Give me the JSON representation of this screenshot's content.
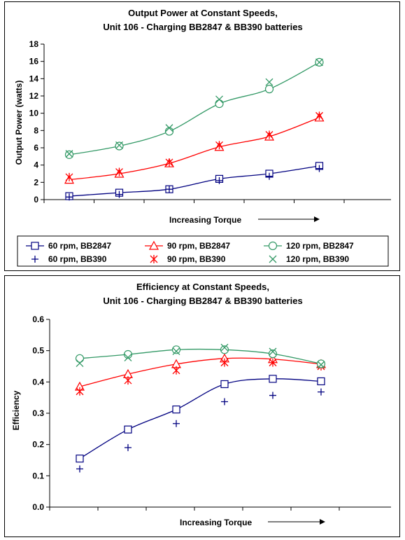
{
  "chart_data": [
    {
      "type": "line",
      "title_line1": "Output Power at Constant Speeds,",
      "title_line2": "Unit 106 - Charging BB2847 & BB390 batteries",
      "xlabel": "Increasing Torque",
      "ylabel": "Output Power (watts)",
      "ylim": [
        0,
        18
      ],
      "yticks": [
        0,
        2,
        4,
        6,
        8,
        10,
        12,
        14,
        16,
        18
      ],
      "grid": false,
      "legend_position": "bottom",
      "x": [
        1,
        2,
        3,
        4,
        5,
        6
      ],
      "series": [
        {
          "name": "60 rpm, BB2847",
          "color": "#000080",
          "marker": "square",
          "line": true,
          "values": [
            0.4,
            0.8,
            1.2,
            2.4,
            3.0,
            3.9
          ]
        },
        {
          "name": "60 rpm, BB390",
          "color": "#000080",
          "marker": "plus",
          "line": false,
          "values": [
            0.3,
            0.6,
            1.2,
            2.2,
            2.7,
            3.6
          ]
        },
        {
          "name": "90 rpm, BB2847",
          "color": "#ff0000",
          "marker": "triangle",
          "line": true,
          "values": [
            2.3,
            3.0,
            4.2,
            6.1,
            7.3,
            9.5
          ]
        },
        {
          "name": "90 rpm, BB390",
          "color": "#ff0000",
          "marker": "star",
          "line": false,
          "values": [
            2.6,
            3.2,
            4.3,
            6.3,
            7.5,
            9.7
          ]
        },
        {
          "name": "120 rpm, BB2847",
          "color": "#339966",
          "marker": "circle",
          "line": true,
          "values": [
            5.2,
            6.2,
            7.9,
            11.1,
            12.8,
            15.9
          ]
        },
        {
          "name": "120 rpm, BB390",
          "color": "#339966",
          "marker": "x",
          "line": false,
          "values": [
            5.3,
            6.3,
            8.3,
            11.6,
            13.6,
            15.9
          ]
        }
      ]
    },
    {
      "type": "line",
      "title_line1": "Efficiency at Constant Speeds,",
      "title_line2": "Unit 106 - Charging BB2847 & BB390 batteries",
      "xlabel": "Increasing Torque",
      "ylabel": "Efficiency",
      "ylim": [
        0,
        0.6
      ],
      "yticks": [
        "0.0",
        "0.1",
        "0.2",
        "0.3",
        "0.4",
        "0.5",
        "0.6"
      ],
      "grid": false,
      "x": [
        1,
        2,
        3,
        4,
        5,
        6
      ],
      "series": [
        {
          "color": "#000080",
          "marker": "square",
          "line": true,
          "values": [
            0.155,
            0.248,
            0.312,
            0.393,
            0.41,
            0.402
          ]
        },
        {
          "color": "#000080",
          "marker": "plus",
          "line": false,
          "values": [
            0.122,
            0.19,
            0.267,
            0.337,
            0.357,
            0.368
          ]
        },
        {
          "color": "#ff0000",
          "marker": "triangle",
          "line": true,
          "values": [
            0.385,
            0.425,
            0.457,
            0.475,
            0.473,
            0.457
          ]
        },
        {
          "color": "#ff0000",
          "marker": "star",
          "line": false,
          "values": [
            0.37,
            0.405,
            0.437,
            0.462,
            0.462,
            0.45
          ]
        },
        {
          "color": "#339966",
          "marker": "circle",
          "line": true,
          "values": [
            0.475,
            0.488,
            0.503,
            0.503,
            0.49,
            0.458
          ]
        },
        {
          "color": "#339966",
          "marker": "x",
          "line": false,
          "values": [
            0.46,
            0.478,
            0.498,
            0.51,
            0.497,
            0.455
          ]
        }
      ]
    }
  ]
}
